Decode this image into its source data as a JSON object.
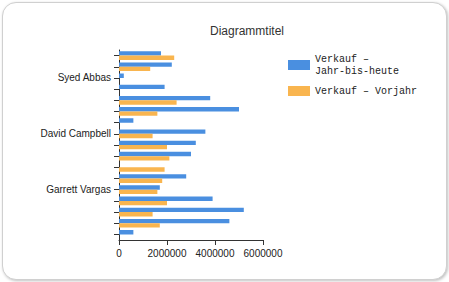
{
  "chart_data": {
    "type": "bar",
    "title": "Diagrammtitel",
    "orientation": "horizontal",
    "categories": [
      null,
      null,
      "Syed Abbas",
      null,
      null,
      null,
      null,
      "David Campbell",
      null,
      null,
      null,
      null,
      "Garrett Vargas",
      null,
      null,
      null,
      null
    ],
    "series": [
      {
        "name": "Verkauf – Jahr-bis-heute",
        "color": "#4a8fe0",
        "values": [
          1750000,
          2200000,
          200000,
          1900000,
          3800000,
          5000000,
          600000,
          3600000,
          3200000,
          3000000,
          0,
          2800000,
          1700000,
          3900000,
          5200000,
          4600000,
          600000
        ]
      },
      {
        "name": "Verkauf – Vorjahr",
        "color": "#f9b54f",
        "values": [
          2300000,
          1300000,
          0,
          0,
          2400000,
          1600000,
          0,
          1400000,
          2000000,
          2100000,
          1900000,
          1800000,
          1600000,
          2000000,
          1400000,
          1700000,
          0
        ]
      }
    ],
    "xlim": [
      0,
      6000000
    ],
    "xticks": [
      0,
      2000000,
      4000000,
      6000000
    ],
    "grid": false,
    "legend": "right"
  }
}
